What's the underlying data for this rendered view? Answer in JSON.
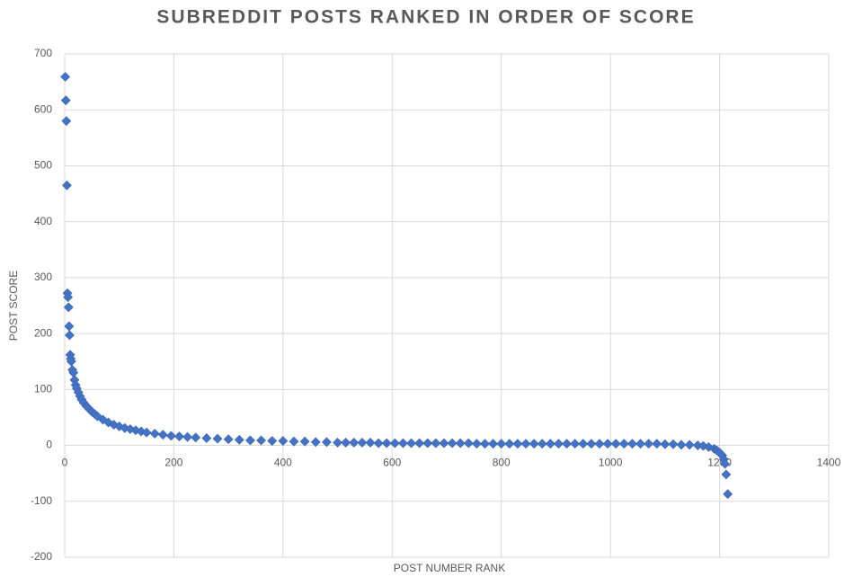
{
  "chart_data": {
    "type": "scatter",
    "title": "SUBREDDIT POSTS RANKED IN ORDER OF SCORE",
    "x_label": "POST NUMBER RANK",
    "y_label": "POST SCORE",
    "color": "#4472c4",
    "grid": true,
    "xlim": [
      0,
      1400
    ],
    "xticks": [
      0,
      200,
      400,
      600,
      800,
      1000,
      1200,
      1400
    ],
    "ylim": [
      -200,
      700
    ],
    "yticks": [
      -200,
      -100,
      0,
      100,
      200,
      300,
      400,
      500,
      600,
      700
    ],
    "x": [
      1,
      2,
      3,
      4,
      5,
      6,
      7,
      8,
      9,
      10,
      11,
      12,
      14,
      16,
      18,
      20,
      22,
      25,
      28,
      31,
      35,
      40,
      45,
      50,
      55,
      60,
      70,
      80,
      90,
      100,
      110,
      120,
      130,
      140,
      150,
      165,
      180,
      195,
      210,
      225,
      240,
      260,
      280,
      300,
      320,
      340,
      360,
      380,
      400,
      420,
      440,
      460,
      480,
      500,
      515,
      530,
      545,
      560,
      575,
      590,
      605,
      620,
      635,
      650,
      665,
      680,
      695,
      710,
      725,
      740,
      755,
      770,
      785,
      800,
      815,
      830,
      845,
      860,
      875,
      890,
      905,
      920,
      935,
      950,
      965,
      980,
      995,
      1010,
      1025,
      1040,
      1055,
      1070,
      1085,
      1100,
      1115,
      1130,
      1145,
      1160,
      1170,
      1180,
      1190,
      1195,
      1200,
      1205,
      1208,
      1210,
      1212,
      1215
    ],
    "values": [
      659,
      617,
      580,
      465,
      272,
      265,
      247,
      213,
      197,
      162,
      155,
      150,
      135,
      130,
      117,
      108,
      102,
      95,
      88,
      82,
      76,
      70,
      65,
      60,
      56,
      52,
      46,
      41,
      37,
      34,
      31,
      29,
      27,
      25,
      23,
      21,
      19,
      17,
      16,
      15,
      14,
      13,
      12,
      11,
      10,
      9,
      9,
      8,
      8,
      7,
      7,
      6,
      6,
      5,
      5,
      5,
      5,
      5,
      4,
      4,
      4,
      4,
      4,
      4,
      4,
      4,
      4,
      4,
      4,
      4,
      3,
      3,
      3,
      3,
      3,
      3,
      3,
      3,
      3,
      3,
      3,
      3,
      3,
      3,
      3,
      3,
      3,
      3,
      3,
      3,
      3,
      3,
      3,
      2,
      2,
      1,
      1,
      0,
      -1,
      -3,
      -6,
      -9,
      -13,
      -18,
      -25,
      -33,
      -52,
      -87
    ]
  }
}
